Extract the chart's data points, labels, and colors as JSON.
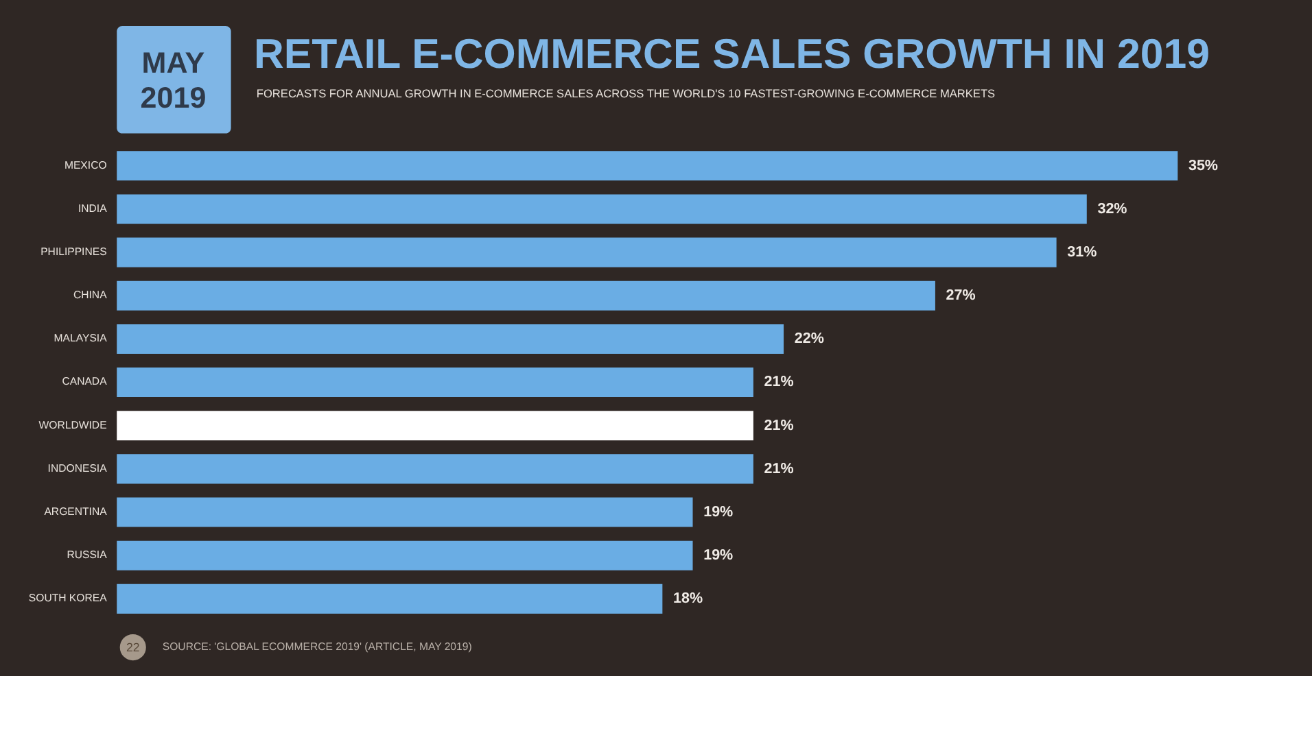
{
  "chart_data": {
    "type": "bar",
    "orientation": "horizontal",
    "title": "RETAIL E-COMMERCE SALES GROWTH IN 2019",
    "subtitle": "FORECASTS FOR ANNUAL GROWTH IN E-COMMERCE SALES ACROSS THE WORLD'S 10 FASTEST-GROWING E-COMMERCE MARKETS",
    "categories": [
      "MEXICO",
      "INDIA",
      "PHILIPPINES",
      "CHINA",
      "MALAYSIA",
      "CANADA",
      "WORLDWIDE",
      "INDONESIA",
      "ARGENTINA",
      "RUSSIA",
      "SOUTH KOREA"
    ],
    "values": [
      35,
      32,
      31,
      27,
      22,
      21,
      21,
      21,
      19,
      19,
      18
    ],
    "value_labels": [
      "35%",
      "32%",
      "31%",
      "27%",
      "22%",
      "21%",
      "21%",
      "21%",
      "19%",
      "19%",
      "18%"
    ],
    "colors": [
      "#6aade4",
      "#6aade4",
      "#6aade4",
      "#6aade4",
      "#6aade4",
      "#6aade4",
      "#ffffff",
      "#6aade4",
      "#6aade4",
      "#6aade4",
      "#6aade4"
    ],
    "annotations": [
      "MAY 2019",
      "22",
      "SOURCE: 'GLOBAL ECOMMERCE 2019' (ARTICLE, MAY 2019)"
    ]
  }
}
